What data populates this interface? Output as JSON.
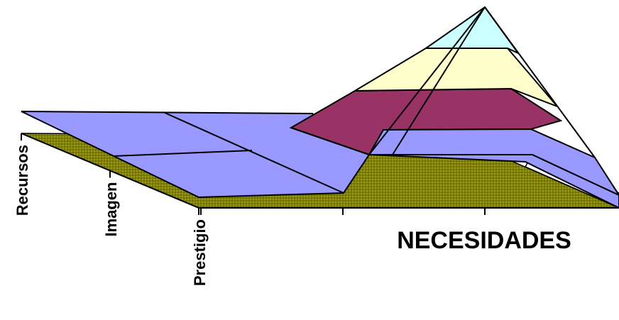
{
  "chart_data": {
    "type": "area",
    "title": "",
    "xlabel": "NECESIDADES",
    "ylabel": "",
    "categories": [
      "Recursos",
      "Imagen",
      "Prestigio"
    ],
    "x_categories": [
      "",
      "",
      ""
    ],
    "pyramid_levels": 4,
    "colors": {
      "floor": "#808000",
      "surface": "#9999ff",
      "level_1": "#993366",
      "level_2": "#ffffcc",
      "level_3": "#ccffff",
      "edge": "#000000"
    }
  }
}
